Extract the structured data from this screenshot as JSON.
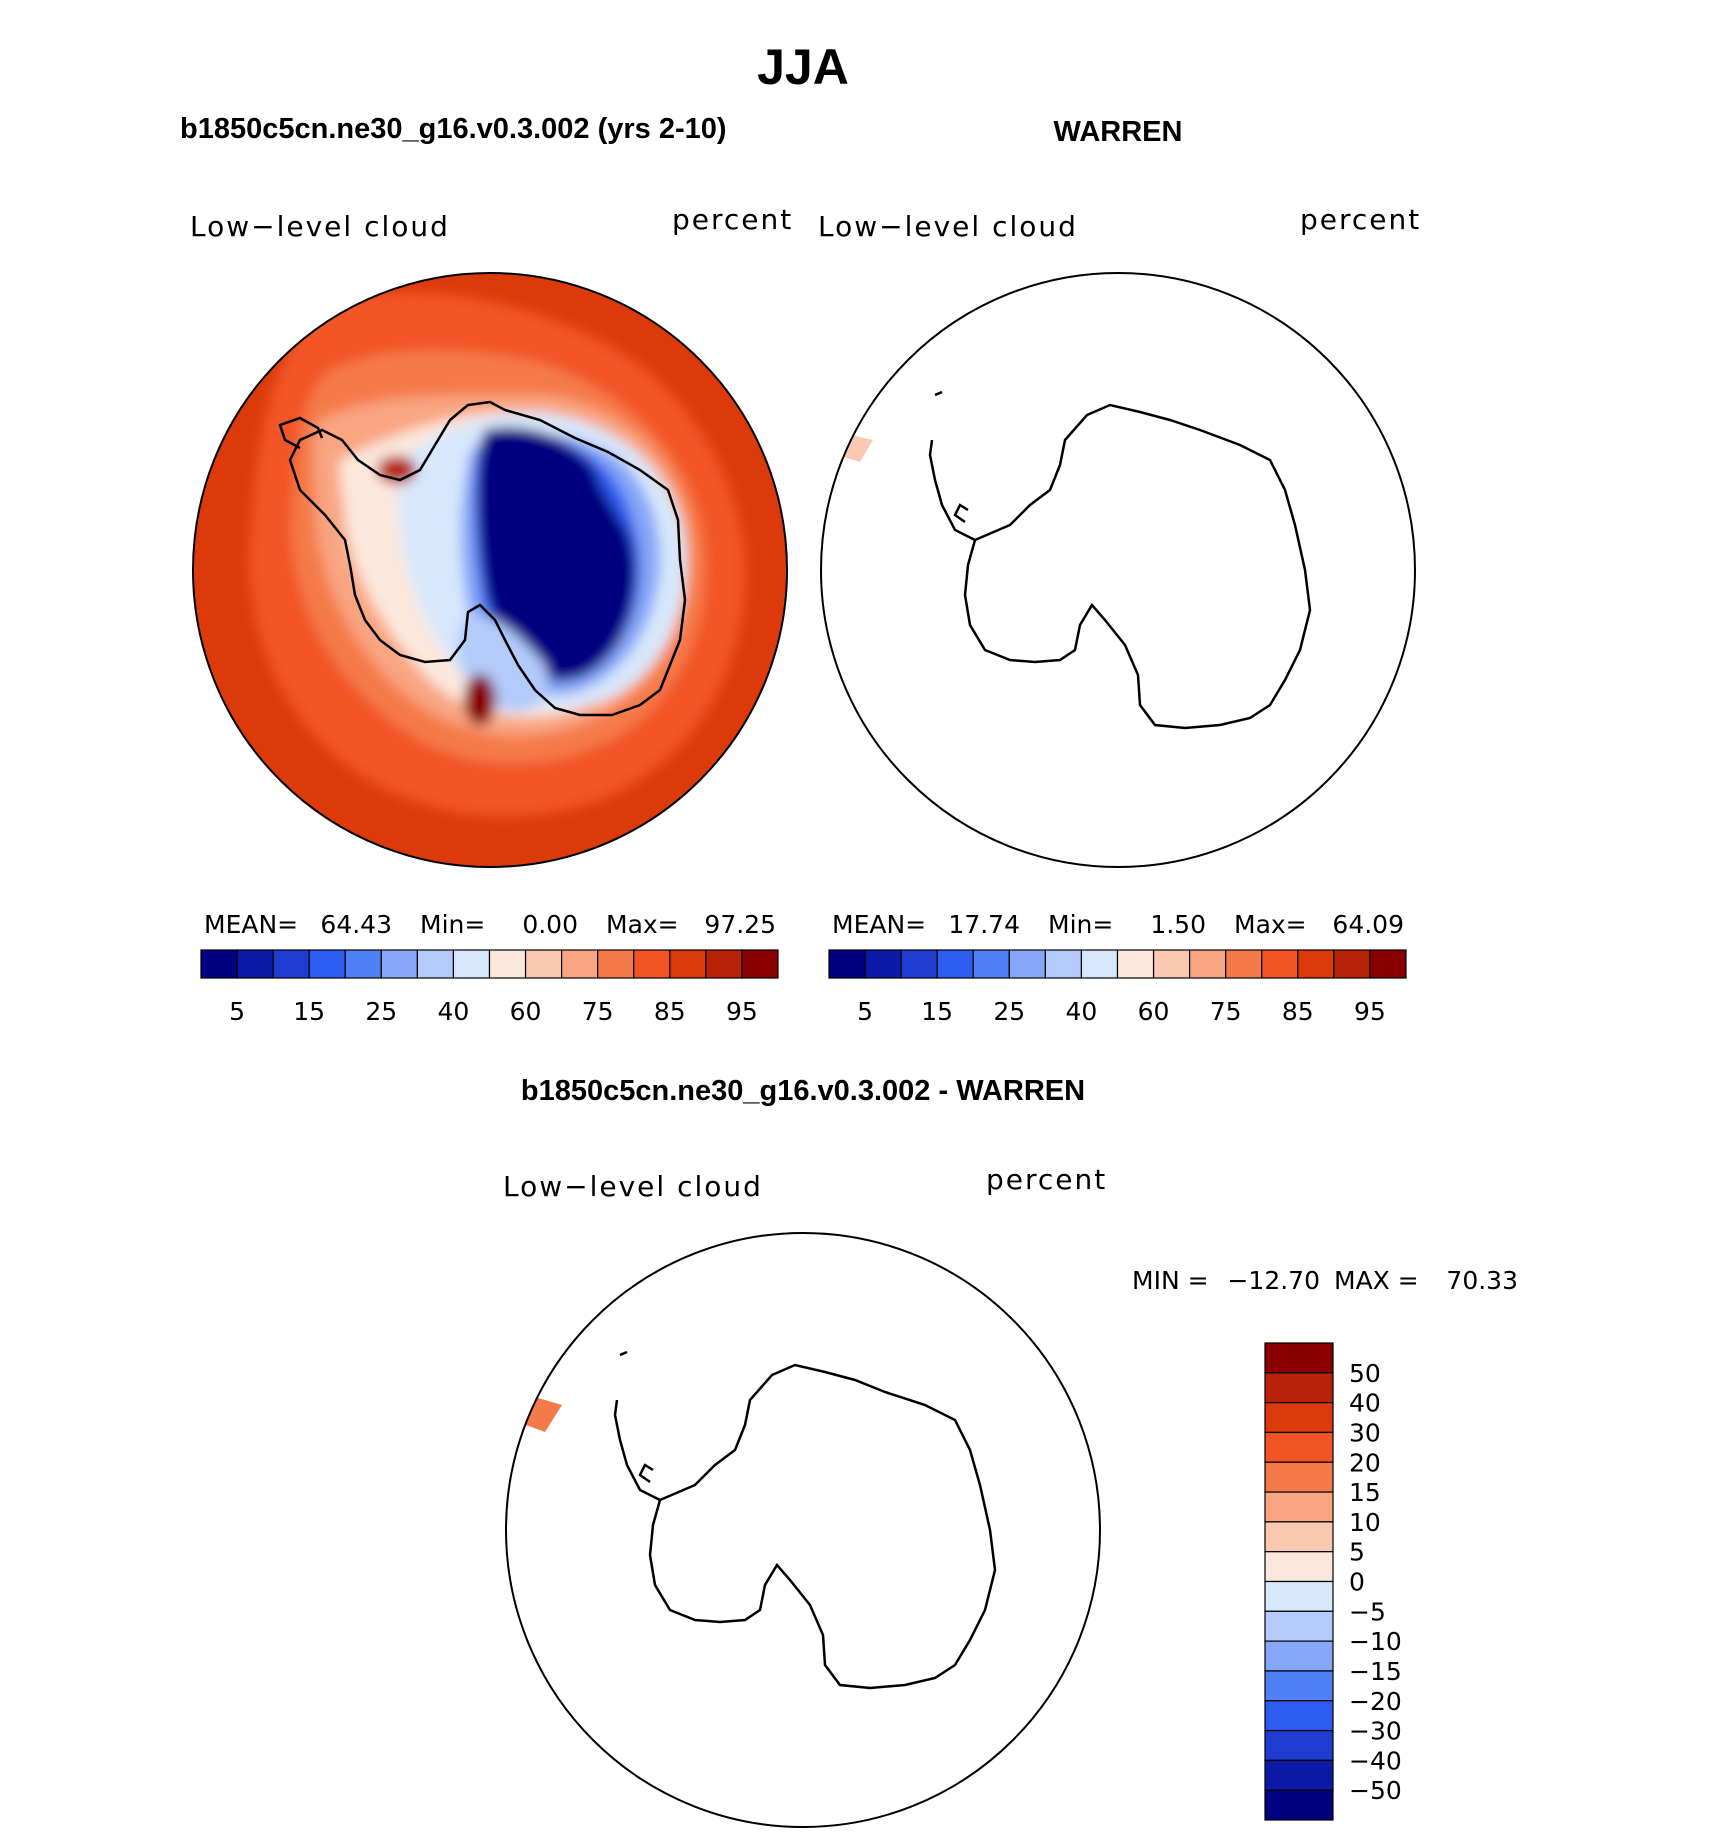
{
  "figure": {
    "title": "JJA",
    "colors": {
      "ink": "#000000",
      "background": "#ffffff"
    }
  },
  "chart_data": [
    {
      "type": "heatmap",
      "projection": "south-polar-stereographic",
      "title": "b1850c5cn.ne30_g16.v0.3.002 (yrs 2-10)",
      "left_label": "Low−level cloud",
      "right_label": "percent",
      "stats": {
        "mean_label": "MEAN=",
        "mean": "64.43",
        "min_label": "Min=",
        "min": "0.00",
        "max_label": "Max=",
        "max": "97.25"
      },
      "colorbar": {
        "orientation": "horizontal",
        "tick_labels": [
          "5",
          "15",
          "25",
          "40",
          "60",
          "75",
          "85",
          "95"
        ],
        "colors": [
          "#000080",
          "#0d1aa8",
          "#1f3cd0",
          "#2e5cf0",
          "#5080f5",
          "#86a6f8",
          "#b3cafb",
          "#d8e8fc",
          "#fbe7dc",
          "#fac8b0",
          "#f9a582",
          "#f57a4a",
          "#f25426",
          "#dd3a0c",
          "#b82208",
          "#8a0000"
        ]
      },
      "field": {
        "ocean_value": 88,
        "ice_value": 5,
        "max_value": 97.25,
        "regions": [
          {
            "name": "outer ocean belt",
            "value": 90
          },
          {
            "name": "subpolar ocean",
            "value": 82
          },
          {
            "name": "sea-ice margin",
            "value": 72
          },
          {
            "name": "coastal zone",
            "value": 55
          },
          {
            "name": "east antarctic plateau",
            "value": 5
          },
          {
            "name": "ross ice shelf",
            "value": 30
          }
        ]
      }
    },
    {
      "type": "heatmap",
      "projection": "south-polar-stereographic",
      "title": "WARREN",
      "left_label": "Low−level cloud",
      "right_label": "percent",
      "stats": {
        "mean_label": "MEAN=",
        "mean": "17.74",
        "min_label": "Min=",
        "min": "1.50",
        "max_label": "Max=",
        "max": "64.09"
      },
      "colorbar": {
        "orientation": "horizontal",
        "tick_labels": [
          "5",
          "15",
          "25",
          "40",
          "60",
          "75",
          "85",
          "95"
        ],
        "colors": [
          "#000080",
          "#0d1aa8",
          "#1f3cd0",
          "#2e5cf0",
          "#5080f5",
          "#86a6f8",
          "#b3cafb",
          "#d8e8fc",
          "#fbe7dc",
          "#fac8b0",
          "#f9a582",
          "#f57a4a",
          "#f25426",
          "#dd3a0c",
          "#b82208",
          "#8a0000"
        ]
      },
      "field": {
        "regions": [
          {
            "name": "single observed cell near antarctic peninsula",
            "value": 60
          }
        ]
      }
    },
    {
      "type": "heatmap",
      "projection": "south-polar-stereographic",
      "title": "b1850c5cn.ne30_g16.v0.3.002 - WARREN",
      "left_label": "Low−level cloud",
      "right_label": "percent",
      "stats": {
        "min_label": "MIN =",
        "min": "−12.70",
        "max_label": "MAX =",
        "max": "70.33"
      },
      "colorbar": {
        "orientation": "vertical",
        "tick_labels": [
          "50",
          "40",
          "30",
          "20",
          "15",
          "10",
          "5",
          "0",
          "−5",
          "−10",
          "−15",
          "−20",
          "−30",
          "−40",
          "−50"
        ],
        "colors": [
          "#8a0000",
          "#b82208",
          "#dd3a0c",
          "#f25426",
          "#f57a4a",
          "#f9a582",
          "#fac8b0",
          "#fbe7dc",
          "#d8e8fc",
          "#b3cafb",
          "#86a6f8",
          "#5080f5",
          "#2e5cf0",
          "#1f3cd0",
          "#0d1aa8",
          "#000080"
        ]
      },
      "field": {
        "regions": [
          {
            "name": "single difference cell near antarctic peninsula",
            "value": 20
          }
        ]
      }
    }
  ]
}
